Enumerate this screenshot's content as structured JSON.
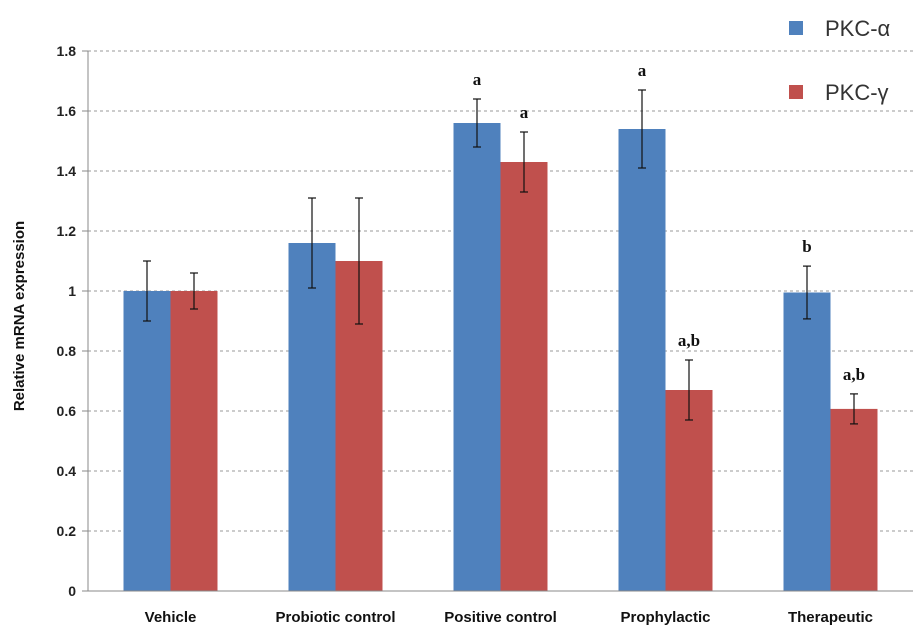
{
  "chart_data": {
    "type": "bar",
    "categories": [
      "Vehicle",
      "Probiotic control",
      "Positive control",
      "Prophylactic",
      "Therapeutic"
    ],
    "series": [
      {
        "name": "PKC-α",
        "color": "#4f81bd",
        "values": [
          1.0,
          1.16,
          1.56,
          1.54,
          0.995
        ],
        "errors": [
          0.1,
          0.15,
          0.08,
          0.13,
          0.088
        ],
        "annotations": [
          "",
          "",
          "a",
          "a",
          "b"
        ]
      },
      {
        "name": "PKC-γ",
        "color": "#c0504d",
        "values": [
          1.0,
          1.1,
          1.43,
          0.67,
          0.607
        ],
        "errors": [
          0.06,
          0.21,
          0.1,
          0.1,
          0.05
        ],
        "annotations": [
          "",
          "",
          "a",
          "a,b",
          "a,b"
        ]
      }
    ],
    "ylabel": "Relative mRNA expression",
    "xlabel": "",
    "ylim": [
      0,
      1.8
    ],
    "yticks": [
      "0",
      "0.2",
      "0.4",
      "0.6",
      "0.8",
      "1",
      "1.2",
      "1.4",
      "1.6",
      "1.8"
    ],
    "grid": true,
    "legend_position": "top-right"
  }
}
